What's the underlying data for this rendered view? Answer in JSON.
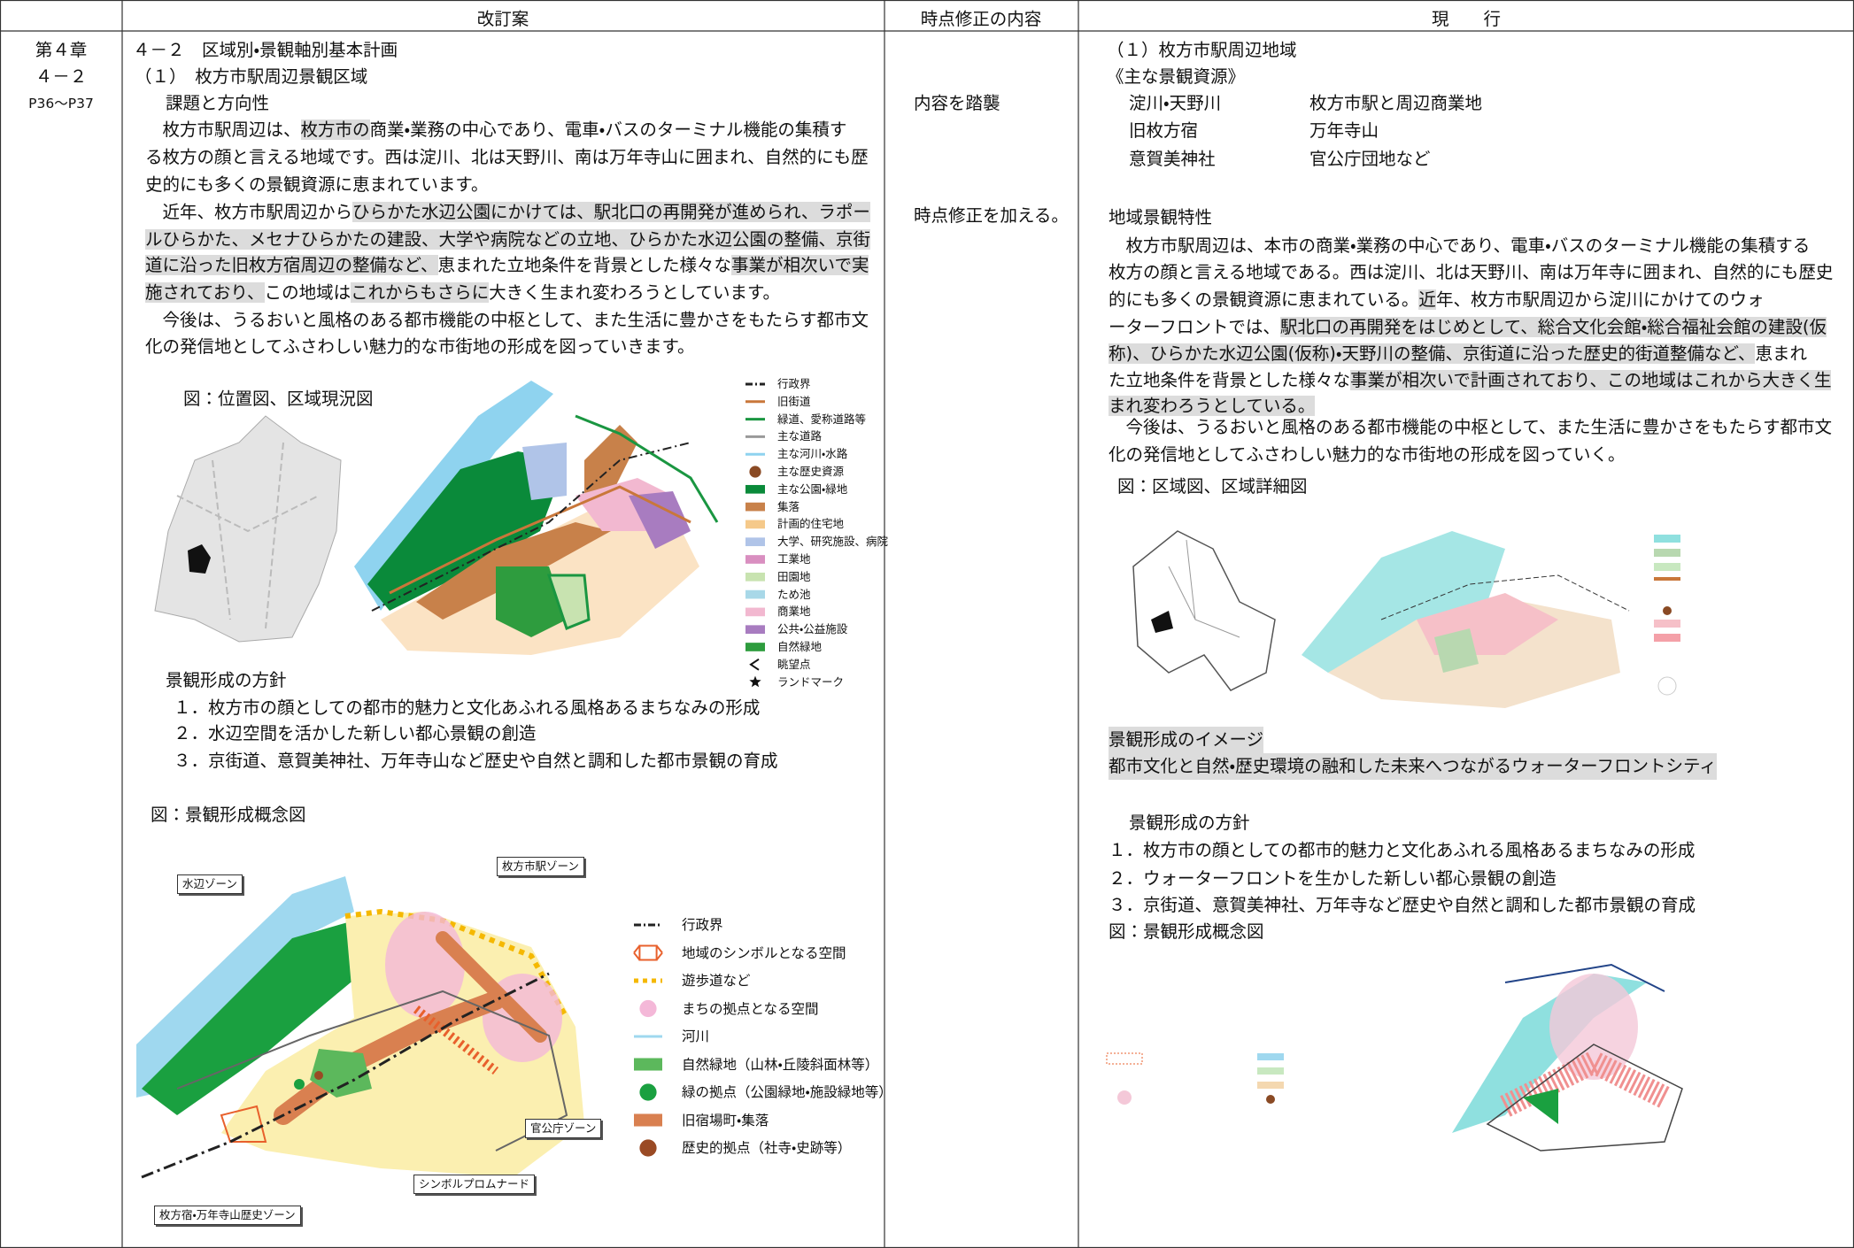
{
  "header": {
    "revised": "改訂案",
    "change": "時点修正の内容",
    "current": "現　　行"
  },
  "chapter": {
    "chapter": "第４章",
    "section": "４－２",
    "pages": "P36～P37"
  },
  "revised": {
    "section_title": "４－２　区域別・景観軸別基本計画",
    "area_title": "（１）　枚方市駅周辺景観区域",
    "issues_heading": "課題と方向性",
    "lines": [
      [
        {
          "text": "　枚方市駅周辺は、",
          "highlight": false
        },
        {
          "text": "枚方市の",
          "highlight": true
        },
        {
          "text": "商業・業務の中心であり、電車・バスのターミナル機能の集積す",
          "highlight": false
        }
      ],
      [
        {
          "text": "る枚方の顔と言える地域です。西は淀川、北は天野川、南は万年寺山に囲まれ、自然的にも歴",
          "highlight": false
        }
      ],
      [
        {
          "text": "史的にも多くの景観資源に恵まれています。",
          "highlight": false
        }
      ],
      [
        {
          "text": "　近年、枚方市駅周辺から",
          "highlight": false
        },
        {
          "text": "ひらかた水辺公園にかけては、駅北口の再開発が進められ、ラポー",
          "highlight": true
        }
      ],
      [
        {
          "text": "ルひらかた、メセナひらかたの建設、大学や病院などの立地、ひらかた水辺公園の整備、京街",
          "highlight": true
        }
      ],
      [
        {
          "text": "道に沿った旧枚方宿周辺の整備など、",
          "highlight": true
        },
        {
          "text": "恵まれた立地条件を背景とした様々な",
          "highlight": false
        },
        {
          "text": "事業が相次いで実",
          "highlight": true
        }
      ],
      [
        {
          "text": "施されており、",
          "highlight": true
        },
        {
          "text": "この地域は",
          "highlight": false
        },
        {
          "text": "これからもさらに",
          "highlight": true
        },
        {
          "text": "大きく生まれ変わろうとしています。",
          "highlight": false
        }
      ],
      [
        {
          "text": "　今後は、うるおいと風格のある都市機能の中枢として、また生活に豊かさをもたらす都市文",
          "highlight": false
        }
      ],
      [
        {
          "text": "化の発信地としてふさわしい魅力的な市街地の形成を図っていきます。",
          "highlight": false
        }
      ]
    ],
    "figure1_caption": "図：位置図、区域現況図",
    "figure1_legend": [
      {
        "label": "行政界",
        "color": "#222222",
        "kind": "dashdot"
      },
      {
        "label": "旧街道",
        "color": "#c9773a",
        "kind": "line"
      },
      {
        "label": "緑道、愛称道路等",
        "color": "#1a9641",
        "kind": "line"
      },
      {
        "label": "主な道路",
        "color": "#999999",
        "kind": "line"
      },
      {
        "label": "主な河川・水路",
        "color": "#8fd3ef",
        "kind": "line"
      },
      {
        "label": "主な歴史資源",
        "color": "#8a4a24",
        "kind": "circle"
      },
      {
        "label": "主な公園・緑地",
        "color": "#0a8a3a",
        "kind": "rect"
      },
      {
        "label": "集落",
        "color": "#c8814a",
        "kind": "rect"
      },
      {
        "label": "計画的住宅地",
        "color": "#f5c98a",
        "kind": "rect"
      },
      {
        "label": "大学、研究施設、病院",
        "color": "#b0c4e8",
        "kind": "rect"
      },
      {
        "label": "工業地",
        "color": "#d98fc0",
        "kind": "rect"
      },
      {
        "label": "田園地",
        "color": "#c8e3b0",
        "kind": "rect"
      },
      {
        "label": "ため池",
        "color": "#a8d8e8",
        "kind": "rect"
      },
      {
        "label": "商業地",
        "color": "#f2b8d0",
        "kind": "rect"
      },
      {
        "label": "公共・公益施設",
        "color": "#a87cc0",
        "kind": "rect"
      },
      {
        "label": "自然緑地",
        "color": "#2e9c3e",
        "kind": "rect"
      },
      {
        "label": "眺望点",
        "color": "#111111",
        "kind": "arrow"
      },
      {
        "label": "ランドマーク",
        "color": "#111111",
        "kind": "star"
      }
    ],
    "policy_heading": "景観形成の方針",
    "policies": [
      "１．枚方市の顔としての都市的魅力と文化あふれる風格あるまちなみの形成",
      "２．水辺空間を活かした新しい都心景観の創造",
      "３．京街道、意賀美神社、万年寺山など歴史や自然と調和した都市景観の育成"
    ],
    "figure2_caption": "図：景観形成概念図",
    "figure2_legend": [
      {
        "label": "行政界",
        "color": "#222222",
        "kind": "dashdot"
      },
      {
        "label": "地域のシンボルとなる空間",
        "color": "#e8602c",
        "kind": "hatch"
      },
      {
        "label": "遊歩道など",
        "color": "#f5b800",
        "kind": "dots"
      },
      {
        "label": "まちの拠点となる空間",
        "color": "#f4b8d8",
        "kind": "circle"
      },
      {
        "label": "河川",
        "color": "#9fd8ef",
        "kind": "line"
      },
      {
        "label": "自然緑地（山林・丘陵斜面林等）",
        "color": "#5cb85c",
        "kind": "rect"
      },
      {
        "label": "緑の拠点（公園緑地・施設緑地等）",
        "color": "#1aa040",
        "kind": "circle"
      },
      {
        "label": "旧宿場町・集落",
        "color": "#d98050",
        "kind": "rect"
      },
      {
        "label": "歴史的拠点（社寺・史跡等）",
        "color": "#9a4a24",
        "kind": "circle"
      }
    ],
    "figure2_zones": [
      "水辺ゾーン",
      "枚方市駅ゾーン",
      "官公庁ゾーン",
      "シンボルプロムナード",
      "枚方宿・万年寺山歴史ゾーン"
    ]
  },
  "change_notes": [
    "内容を踏襲",
    "時点修正を加える。"
  ],
  "current": {
    "area_title": "（１）枚方市駅周辺地域",
    "resources_heading": "《主な景観資源》",
    "resources": [
      [
        "淀川・天野川",
        "枚方市駅と周辺商業地"
      ],
      [
        "旧枚方宿",
        "万年寺山"
      ],
      [
        "意賀美神社",
        "官公庁団地など"
      ]
    ],
    "character_heading": "地域景観特性",
    "lines": [
      [
        {
          "text": "　枚方市駅周辺は、本市の商業・業務の中心であり、電車・バスのターミナル機能の集積する",
          "highlight": false
        }
      ],
      [
        {
          "text": "枚方の顔と言える地域である。西は淀川、北は天野川、南は万年寺に囲まれ、自然的にも歴史",
          "highlight": false
        }
      ],
      [
        {
          "text": "的にも多くの景観資源に恵まれている。",
          "highlight": false
        },
        {
          "text": "近",
          "highlight": true
        },
        {
          "text": "年、枚方市駅周辺から淀川にかけてのウォ",
          "highlight": false
        }
      ],
      [
        {
          "text": "ーターフロントでは、",
          "highlight": false
        },
        {
          "text": "駅北口の再開発をはじめとして、総合文化会館・総合福祉会館の建設(仮",
          "highlight": true
        }
      ],
      [
        {
          "text": "称)、ひらかた水辺公園(仮称)・天野川の整備、京街道に沿った歴史的街道整備など、",
          "highlight": true
        },
        {
          "text": "恵まれ",
          "highlight": false
        }
      ],
      [
        {
          "text": "た立地条件を背景とした様々な",
          "highlight": false
        },
        {
          "text": "事業が相次いで計画されており、この地域はこれから大きく生",
          "highlight": true
        }
      ],
      [
        {
          "text": "まれ変わろうとしている。",
          "highlight": true
        }
      ],
      [
        {
          "text": "　今後は、うるおいと風格のある都市機能の中枢として、また生活に豊かさをもたらす都市文",
          "highlight": false
        }
      ],
      [
        {
          "text": "化の発信地としてふさわしい魅力的な市街地の形成を図っていく。",
          "highlight": false
        }
      ]
    ],
    "figure1_caption": "図：区域図、区域詳細図",
    "image_heading": "景観形成のイメージ",
    "image_text": "都市文化と自然・歴史環境の融和した未来へつながるウォーターフロントシティ",
    "policy_heading": "景観形成の方針",
    "policies": [
      "１．枚方市の顔としての都市的魅力と文化あふれる風格あるまちなみの形成",
      "２．ウォーターフロントを生かした新しい都心景観の創造",
      "３．京街道、意賀美神社、万年寺など歴史や自然と調和した都市景観の育成"
    ],
    "figure2_caption": "図：景観形成概念図"
  }
}
